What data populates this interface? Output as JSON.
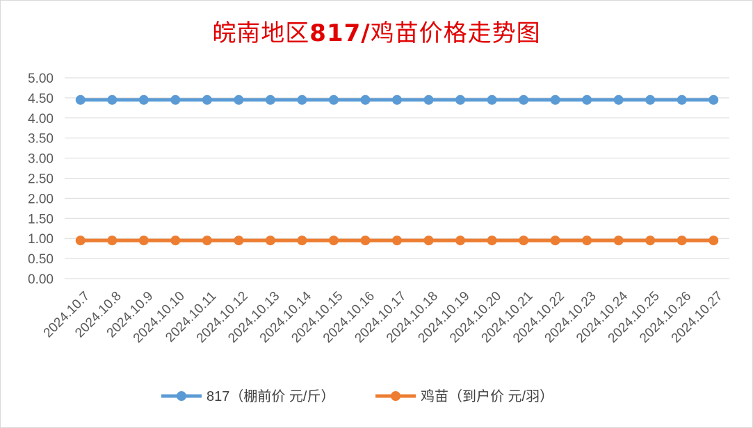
{
  "chart_data": {
    "type": "line",
    "title_part1": "皖南地区",
    "title_part2": "817/",
    "title_part3": "鸡苗价格走势图",
    "categories": [
      "2024.10.7",
      "2024.10.8",
      "2024.10.9",
      "2024.10.10",
      "2024.10.11",
      "2024.10.12",
      "2024.10.13",
      "2024.10.14",
      "2024.10.15",
      "2024.10.16",
      "2024.10.17",
      "2024.10.18",
      "2024.10.19",
      "2024.10.20",
      "2024.10.21",
      "2024.10.22",
      "2024.10.23",
      "2024.10.24",
      "2024.10.25",
      "2024.10.26",
      "2024.10.27"
    ],
    "ylim": [
      0,
      5
    ],
    "ytick_labels": [
      "0.00",
      "0.50",
      "1.00",
      "1.50",
      "2.00",
      "2.50",
      "3.00",
      "3.50",
      "4.00",
      "4.50",
      "5.00"
    ],
    "grid": true,
    "legend_position": "bottom",
    "series": [
      {
        "name": "817（棚前价 元/斤）",
        "color": "#5b9bd5",
        "values": [
          4.45,
          4.45,
          4.45,
          4.45,
          4.45,
          4.45,
          4.45,
          4.45,
          4.45,
          4.45,
          4.45,
          4.45,
          4.45,
          4.45,
          4.45,
          4.45,
          4.45,
          4.45,
          4.45,
          4.45,
          4.45
        ]
      },
      {
        "name": "鸡苗（到户价 元/羽）",
        "color": "#ed7d31",
        "values": [
          0.95,
          0.95,
          0.95,
          0.95,
          0.95,
          0.95,
          0.95,
          0.95,
          0.95,
          0.95,
          0.95,
          0.95,
          0.95,
          0.95,
          0.95,
          0.95,
          0.95,
          0.95,
          0.95,
          0.95,
          0.95
        ]
      }
    ]
  }
}
